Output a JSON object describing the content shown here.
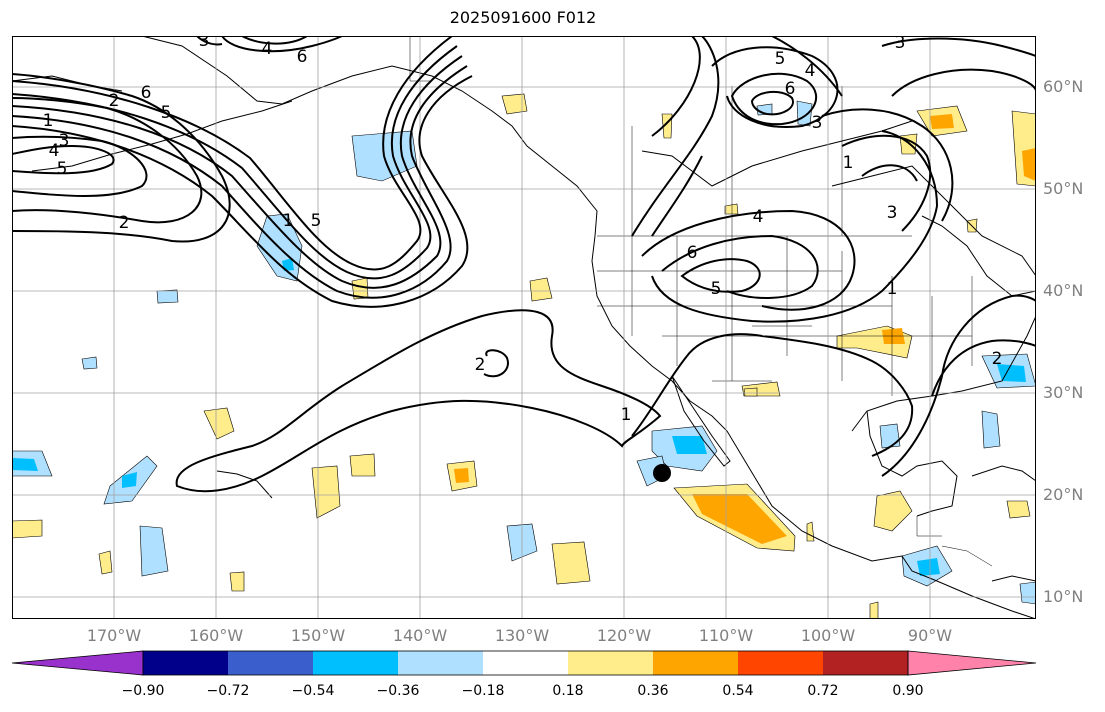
{
  "title": "2025091600 F012",
  "lat_labels": [
    "60°N",
    "50°N",
    "40°N",
    "30°N",
    "20°N",
    "10°N"
  ],
  "lon_labels": [
    "170°W",
    "160°W",
    "150°W",
    "140°W",
    "130°W",
    "120°W",
    "110°W",
    "100°W",
    "90°W"
  ],
  "contour_labels": [
    "1",
    "2",
    "3",
    "4",
    "5",
    "6"
  ],
  "colorbar": {
    "ticks": [
      "−0.90",
      "−0.72",
      "−0.54",
      "−0.36",
      "−0.18",
      "0.18",
      "0.36",
      "0.54",
      "0.72",
      "0.90"
    ],
    "colors": [
      "#9932cc",
      "#00008b",
      "#3a5fcd",
      "#00bfff",
      "#b0e0ff",
      "#ffffff",
      "#ffec8b",
      "#ffa500",
      "#ff4500",
      "#b22222",
      "#ff82ab"
    ]
  }
}
